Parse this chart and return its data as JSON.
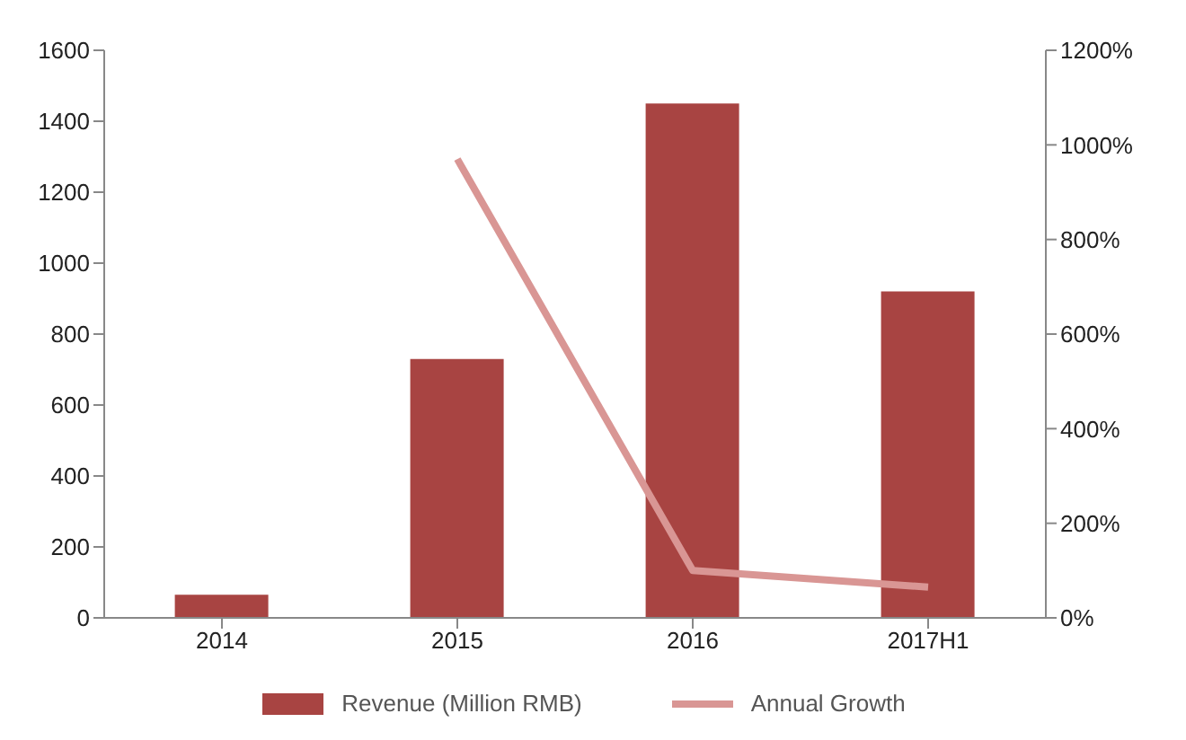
{
  "chart_data": {
    "type": "bar",
    "categories": [
      "2014",
      "2015",
      "2016",
      "2017H1"
    ],
    "series": [
      {
        "name": "Revenue (Million RMB)",
        "color": "#a84442",
        "values": [
          65,
          730,
          1450,
          920
        ]
      },
      {
        "name": "Annual Growth",
        "type": "line",
        "axis": "y2",
        "color": "#d99694",
        "values": [
          null,
          970,
          100,
          65
        ]
      }
    ],
    "ylim": [
      0,
      1600
    ],
    "yticks": [
      0,
      200,
      400,
      600,
      800,
      1000,
      1200,
      1400,
      1600
    ],
    "y2lim": [
      0,
      1200
    ],
    "y2ticks": [
      {
        "value": 0,
        "label": "0%"
      },
      {
        "value": 200,
        "label": "200%"
      },
      {
        "value": 400,
        "label": "400%"
      },
      {
        "value": 600,
        "label": "600%"
      },
      {
        "value": 800,
        "label": "800%"
      },
      {
        "value": 1000,
        "label": "1000%"
      },
      {
        "value": 1200,
        "label": "1200%"
      }
    ],
    "legend": "bottom",
    "grid": false,
    "marker": "none"
  }
}
